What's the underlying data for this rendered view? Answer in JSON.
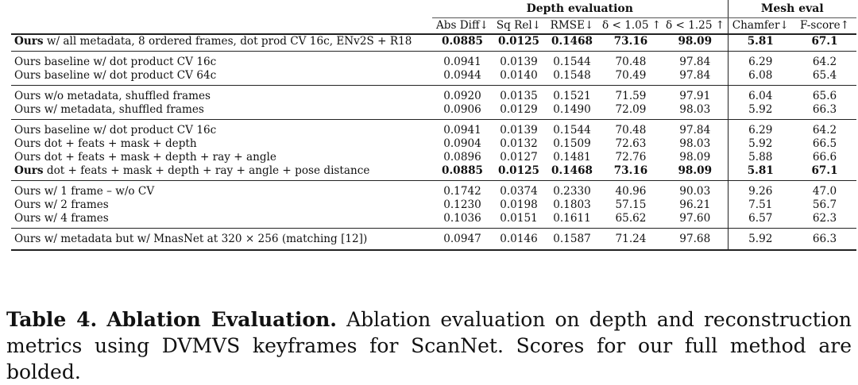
{
  "table": {
    "group_headers": {
      "depth": "Depth evaluation",
      "mesh": "Mesh eval"
    },
    "columns": [
      "Abs Diff↓",
      "Sq Rel↓",
      "RMSE↓",
      "δ < 1.05 ↑",
      "δ < 1.25 ↑",
      "Chamfer↓",
      "F-score↑"
    ],
    "groups": [
      {
        "rows": [
          {
            "prefix": "Ours",
            "label": " w/ all metadata, 8 ordered frames, dot prod CV 16c, ENv2S + R18",
            "values": [
              "0.0885",
              "0.0125",
              "0.1468",
              "73.16",
              "98.09",
              "5.81",
              "67.1"
            ],
            "bold": true
          }
        ]
      },
      {
        "rows": [
          {
            "prefix": "",
            "label": "Ours baseline w/ dot product CV 16c",
            "values": [
              "0.0941",
              "0.0139",
              "0.1544",
              "70.48",
              "97.84",
              "6.29",
              "64.2"
            ],
            "bold": false
          },
          {
            "prefix": "",
            "label": "Ours baseline w/ dot product CV 64c",
            "values": [
              "0.0944",
              "0.0140",
              "0.1548",
              "70.49",
              "97.84",
              "6.08",
              "65.4"
            ],
            "bold": false
          }
        ]
      },
      {
        "rows": [
          {
            "prefix": "",
            "label": "Ours w/o metadata, shuffled frames",
            "values": [
              "0.0920",
              "0.0135",
              "0.1521",
              "71.59",
              "97.91",
              "6.04",
              "65.6"
            ],
            "bold": false
          },
          {
            "prefix": "",
            "label": "Ours w/ metadata, shuffled frames",
            "values": [
              "0.0906",
              "0.0129",
              "0.1490",
              "72.09",
              "98.03",
              "5.92",
              "66.3"
            ],
            "bold": false
          }
        ]
      },
      {
        "rows": [
          {
            "prefix": "",
            "label": "Ours baseline w/ dot product CV 16c",
            "values": [
              "0.0941",
              "0.0139",
              "0.1544",
              "70.48",
              "97.84",
              "6.29",
              "64.2"
            ],
            "bold": false
          },
          {
            "prefix": "",
            "label": "Ours dot + feats + mask + depth",
            "values": [
              "0.0904",
              "0.0132",
              "0.1509",
              "72.63",
              "98.03",
              "5.92",
              "66.5"
            ],
            "bold": false
          },
          {
            "prefix": "",
            "label": "Ours dot + feats + mask + depth + ray + angle",
            "values": [
              "0.0896",
              "0.0127",
              "0.1481",
              "72.76",
              "98.09",
              "5.88",
              "66.6"
            ],
            "bold": false
          },
          {
            "prefix": "Ours",
            "label": " dot + feats + mask + depth + ray + angle + pose distance",
            "values": [
              "0.0885",
              "0.0125",
              "0.1468",
              "73.16",
              "98.09",
              "5.81",
              "67.1"
            ],
            "bold": true
          }
        ]
      },
      {
        "rows": [
          {
            "prefix": "",
            "label": "Ours w/ 1 frame – w/o CV",
            "values": [
              "0.1742",
              "0.0374",
              "0.2330",
              "40.96",
              "90.03",
              "9.26",
              "47.0"
            ],
            "bold": false
          },
          {
            "prefix": "",
            "label": "Ours w/ 2 frames",
            "values": [
              "0.1230",
              "0.0198",
              "0.1803",
              "57.15",
              "96.21",
              "7.51",
              "56.7"
            ],
            "bold": false
          },
          {
            "prefix": "",
            "label": "Ours w/ 4 frames",
            "values": [
              "0.1036",
              "0.0151",
              "0.1611",
              "65.62",
              "97.60",
              "6.57",
              "62.3"
            ],
            "bold": false
          }
        ]
      },
      {
        "rows": [
          {
            "prefix": "",
            "label": "Ours w/ metadata but w/ MnasNet at 320 × 256 (matching [12])",
            "values": [
              "0.0947",
              "0.0146",
              "0.1587",
              "71.24",
              "97.68",
              "5.92",
              "66.3"
            ],
            "bold": false
          }
        ]
      }
    ]
  },
  "caption": {
    "label": "Table 4.",
    "title": "Ablation Evaluation.",
    "text": "Ablation evaluation on depth and reconstruction metrics using DVMVS keyframes for ScanNet. Scores for our full method are bolded."
  }
}
